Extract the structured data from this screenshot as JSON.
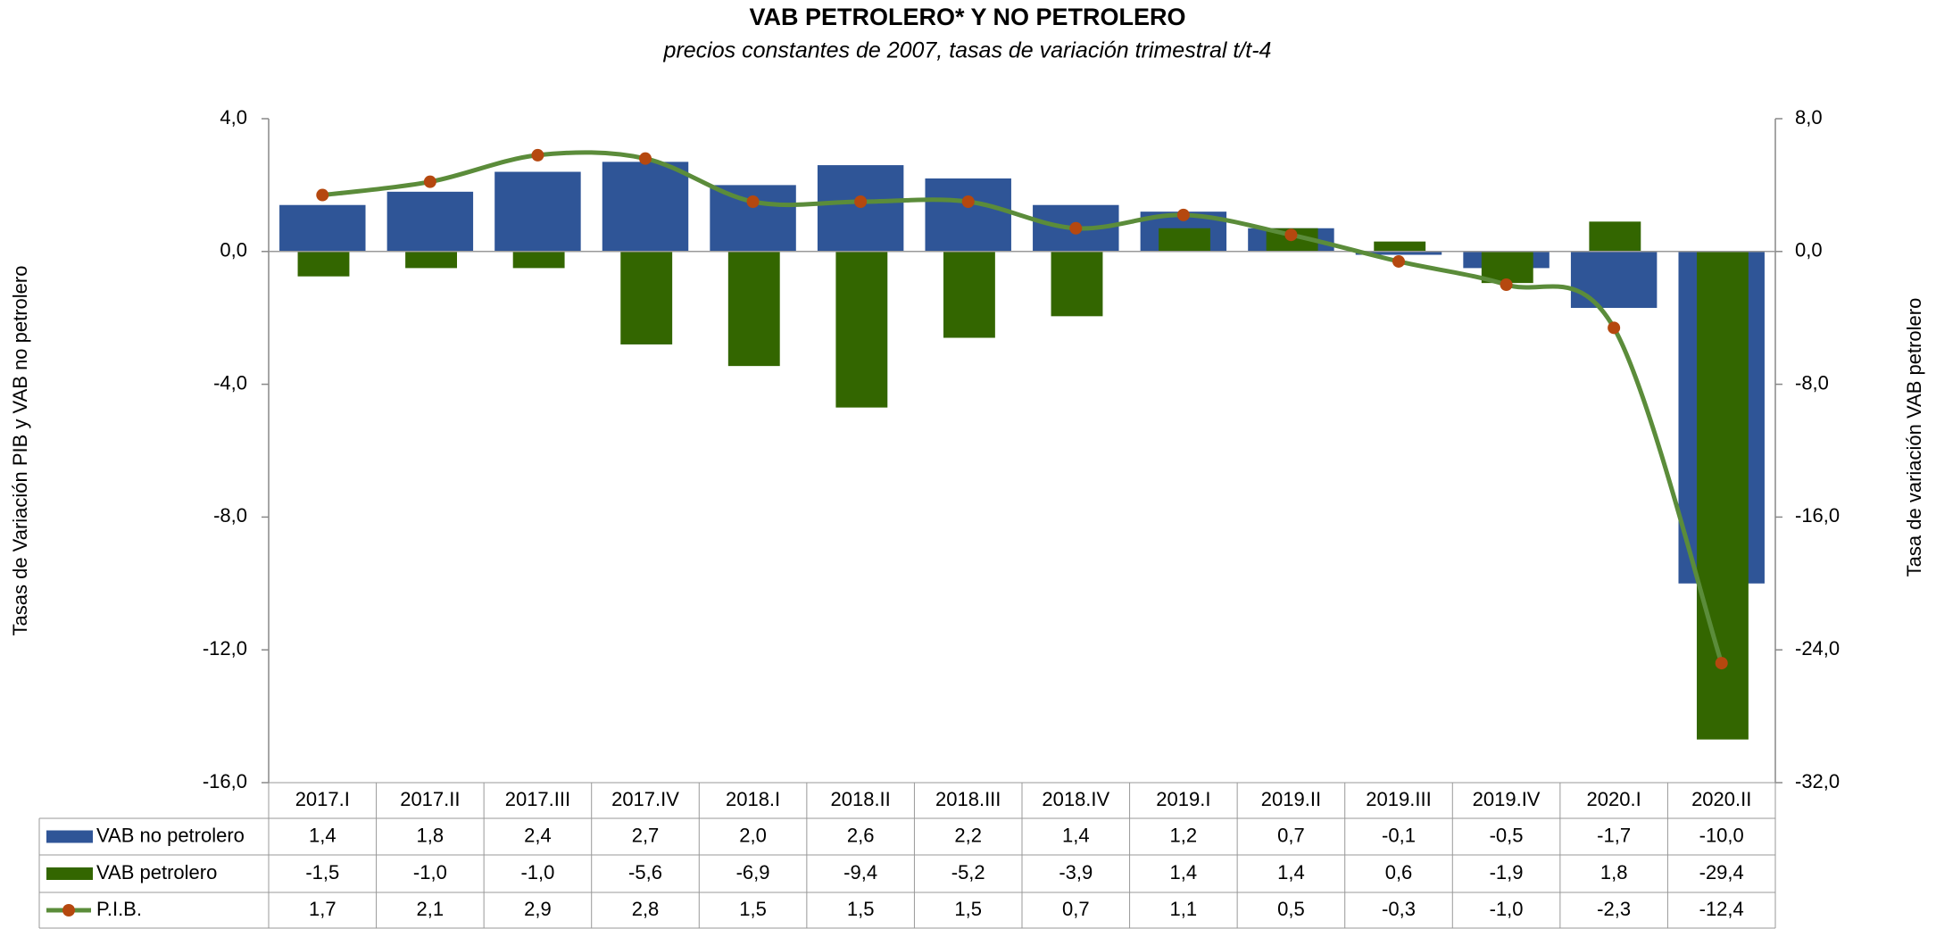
{
  "chart_data": {
    "type": "bar",
    "title": "VAB PETROLERO* Y NO PETROLERO",
    "subtitle": "precios constantes de 2007, tasas de variación trimestral t/t-4",
    "y_label": "Tasas de Variación PIB y VAB no petrolero",
    "y2_label": "Tasa de variación VAB petrolero",
    "categories": [
      "2017.I",
      "2017.II",
      "2017.III",
      "2017.IV",
      "2018.I",
      "2018.II",
      "2018.III",
      "2018.IV",
      "2019.I",
      "2019.II",
      "2019.III",
      "2019.IV",
      "2020.I",
      "2020.II"
    ],
    "series": [
      {
        "name": "VAB no petrolero",
        "type": "bar",
        "color": "#2f5597",
        "axis": "y",
        "values": [
          1.4,
          1.8,
          2.4,
          2.7,
          2.0,
          2.6,
          2.2,
          1.4,
          1.2,
          0.7,
          -0.1,
          -0.5,
          -1.7,
          -10.0
        ],
        "value_labels": [
          "1,4",
          "1,8",
          "2,4",
          "2,7",
          "2,0",
          "2,6",
          "2,2",
          "1,4",
          "1,2",
          "0,7",
          "-0,1",
          "-0,5",
          "-1,7",
          "-10,0"
        ]
      },
      {
        "name": "VAB petrolero",
        "type": "bar",
        "color": "#336600",
        "axis": "y2",
        "values": [
          -1.5,
          -1.0,
          -1.0,
          -5.6,
          -6.9,
          -9.4,
          -5.2,
          -3.9,
          1.4,
          1.4,
          0.6,
          -1.9,
          1.8,
          -29.4
        ],
        "value_labels": [
          "-1,5",
          "-1,0",
          "-1,0",
          "-5,6",
          "-6,9",
          "-9,4",
          "-5,2",
          "-3,9",
          "1,4",
          "1,4",
          "0,6",
          "-1,9",
          "1,8",
          "-29,4"
        ]
      },
      {
        "name": "P.I.B.",
        "type": "line",
        "color": "#5b8c3a",
        "marker_color": "#b5480f",
        "axis": "y",
        "values": [
          1.7,
          2.1,
          2.9,
          2.8,
          1.5,
          1.5,
          1.5,
          0.7,
          1.1,
          0.5,
          -0.3,
          -1.0,
          -2.3,
          -12.4
        ],
        "value_labels": [
          "1,7",
          "2,1",
          "2,9",
          "2,8",
          "1,5",
          "1,5",
          "1,5",
          "0,7",
          "1,1",
          "0,5",
          "-0,3",
          "-1,0",
          "-2,3",
          "-12,4"
        ]
      }
    ],
    "ylim": [
      -16,
      4
    ],
    "yticks": [
      {
        "value": -16,
        "label": "-16,0"
      },
      {
        "value": -12,
        "label": "-12,0"
      },
      {
        "value": -8,
        "label": "-8,0"
      },
      {
        "value": -4,
        "label": "-4,0"
      },
      {
        "value": 0,
        "label": "0,0"
      },
      {
        "value": 4,
        "label": "4,0"
      }
    ],
    "y2lim": [
      -32,
      8
    ],
    "y2ticks": [
      {
        "value": -32,
        "label": "-32,0"
      },
      {
        "value": -24,
        "label": "-24,0"
      },
      {
        "value": -16,
        "label": "-16,0"
      },
      {
        "value": -8,
        "label": "-8,0"
      },
      {
        "value": 0,
        "label": "0,0"
      },
      {
        "value": 8,
        "label": "8,0"
      }
    ],
    "grid": false,
    "data_table": true
  }
}
